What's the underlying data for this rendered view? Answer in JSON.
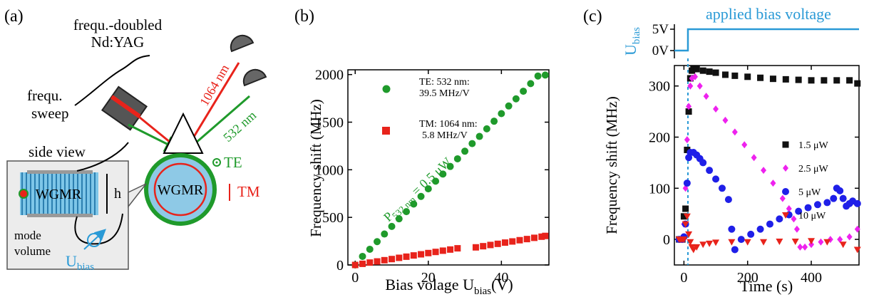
{
  "colors": {
    "green": "#1f9a2b",
    "red": "#e8231b",
    "blue": "#2a9ad6",
    "magenta": "#ee22ee",
    "darkblue": "#1f1fe8",
    "black": "#111111"
  },
  "panel_a": {
    "label": "(a)",
    "laser_label_1": "frequ.-doubled",
    "laser_label_2": "Nd:YAG",
    "sweep_label_1": "frequ.",
    "sweep_label_2": "sweep",
    "wavelength_ir": "1064 nm",
    "wavelength_green": "532 nm",
    "te_label": "TE",
    "tm_label": "TM",
    "wgmr_label": "WGMR",
    "side_view_label": "side view",
    "inset_wgmr_label": "WGMR",
    "height_label": "h",
    "mode_label_1": "mode",
    "mode_label_2": "volume",
    "bias_label": "U",
    "bias_sub": "bias"
  },
  "chart_data": [
    {
      "type": "scatter",
      "panel": "(b)",
      "xlabel": "Bias volage U",
      "xlabel_sub": "bias",
      "xlabel_unit": "(V)",
      "ylabel": "Frequency shift (MHz)",
      "xlim": [
        -2,
        53
      ],
      "ylim": [
        0,
        2050
      ],
      "xticks": [
        0,
        20,
        40
      ],
      "yticks": [
        0,
        500,
        1000,
        1500,
        2000
      ],
      "annotation": {
        "prefix": "P",
        "sub": "532 nm",
        "suffix": " = 0.5 μW"
      },
      "series": [
        {
          "legend_line1": "TE: 532 nm:",
          "legend_line2": "39.5 MHz/V",
          "color": "#1f9a2b",
          "marker": "circle",
          "x": [
            0,
            2,
            4,
            6,
            8,
            10,
            12,
            14,
            16,
            18,
            20,
            22,
            24,
            26,
            28,
            30,
            32,
            34,
            36,
            38,
            40,
            42,
            44,
            46,
            48,
            50,
            52
          ],
          "y": [
            0,
            90,
            165,
            245,
            325,
            405,
            485,
            560,
            640,
            720,
            800,
            880,
            955,
            1035,
            1115,
            1195,
            1275,
            1350,
            1430,
            1510,
            1590,
            1670,
            1745,
            1825,
            1905,
            1985,
            1995
          ]
        },
        {
          "legend_line1": "TM: 1064 nm:",
          "legend_line2": "5.8 MHz/V",
          "color": "#e8231b",
          "marker": "square",
          "x": [
            0,
            2,
            4,
            6,
            8,
            10,
            12,
            14,
            16,
            18,
            20,
            22,
            24,
            26,
            28,
            33,
            35,
            37,
            39,
            41,
            43,
            45,
            47,
            49,
            51,
            52
          ],
          "y": [
            0,
            12,
            25,
            37,
            50,
            62,
            75,
            87,
            100,
            112,
            125,
            137,
            150,
            162,
            175,
            185,
            197,
            210,
            222,
            235,
            247,
            260,
            272,
            285,
            297,
            305
          ]
        }
      ]
    },
    {
      "type": "scatter",
      "panel": "(c)",
      "xlabel": "Time (s)",
      "ylabel": "Frequency shift (MHz)",
      "xlim": [
        -30,
        550
      ],
      "ylim": [
        -50,
        340
      ],
      "xticks": [
        0,
        200,
        400
      ],
      "yticks": [
        0,
        100,
        200,
        300
      ],
      "bias_trace": {
        "title": "applied bias voltage",
        "ylabel": "U",
        "ylabel_sub": "bias",
        "levels": [
          "5V",
          "0V"
        ],
        "color": "#2a9ad6"
      },
      "series": [
        {
          "name": "1.5 μW",
          "color": "#111111",
          "marker": "square",
          "x": [
            -15,
            -5,
            0,
            5,
            10,
            15,
            20,
            25,
            30,
            40,
            60,
            80,
            100,
            130,
            160,
            200,
            240,
            280,
            320,
            360,
            400,
            440,
            480,
            520,
            545
          ],
          "y": [
            0,
            0,
            45,
            60,
            175,
            250,
            315,
            330,
            333,
            333,
            330,
            328,
            326,
            322,
            320,
            318,
            316,
            314,
            313,
            312,
            311,
            311,
            311,
            311,
            305
          ]
        },
        {
          "name": "2.5 μW",
          "color": "#ee22ee",
          "marker": "diamond",
          "x": [
            -15,
            -5,
            0,
            5,
            10,
            15,
            20,
            25,
            35,
            50,
            70,
            100,
            130,
            160,
            190,
            220,
            250,
            280,
            310,
            330,
            345,
            355,
            365,
            380,
            400,
            430,
            460,
            490,
            520,
            545
          ],
          "y": [
            0,
            0,
            30,
            100,
            195,
            260,
            300,
            315,
            318,
            300,
            280,
            255,
            233,
            210,
            185,
            160,
            135,
            110,
            80,
            60,
            40,
            20,
            -15,
            -15,
            -10,
            -5,
            0,
            0,
            5,
            20
          ]
        },
        {
          "name": "5 μW",
          "color": "#1f1fe8",
          "marker": "circle",
          "x": [
            -15,
            -5,
            0,
            5,
            10,
            15,
            20,
            30,
            40,
            50,
            60,
            80,
            100,
            120,
            140,
            150,
            160,
            180,
            210,
            240,
            270,
            300,
            330,
            360,
            390,
            420,
            450,
            470,
            480,
            490,
            500,
            510,
            520,
            530,
            545
          ],
          "y": [
            0,
            0,
            5,
            30,
            110,
            160,
            170,
            170,
            165,
            158,
            150,
            135,
            118,
            100,
            78,
            20,
            -20,
            0,
            10,
            20,
            30,
            40,
            48,
            55,
            62,
            68,
            72,
            80,
            100,
            95,
            80,
            65,
            70,
            75,
            70
          ],
          "note": ""
        },
        {
          "name": "10 μW",
          "color": "#e8231b",
          "marker": "triangle-down",
          "x": [
            -15,
            -10,
            -5,
            0,
            5,
            10,
            15,
            20,
            25,
            30,
            40,
            60,
            80,
            100,
            150,
            200,
            250,
            300,
            350,
            400,
            450,
            500,
            545
          ],
          "y": [
            0,
            0,
            0,
            0,
            30,
            45,
            10,
            -5,
            -15,
            -20,
            -15,
            -10,
            -8,
            -6,
            -5,
            -5,
            -5,
            -4,
            -4,
            -3,
            -5,
            -10,
            -20
          ]
        }
      ]
    }
  ]
}
